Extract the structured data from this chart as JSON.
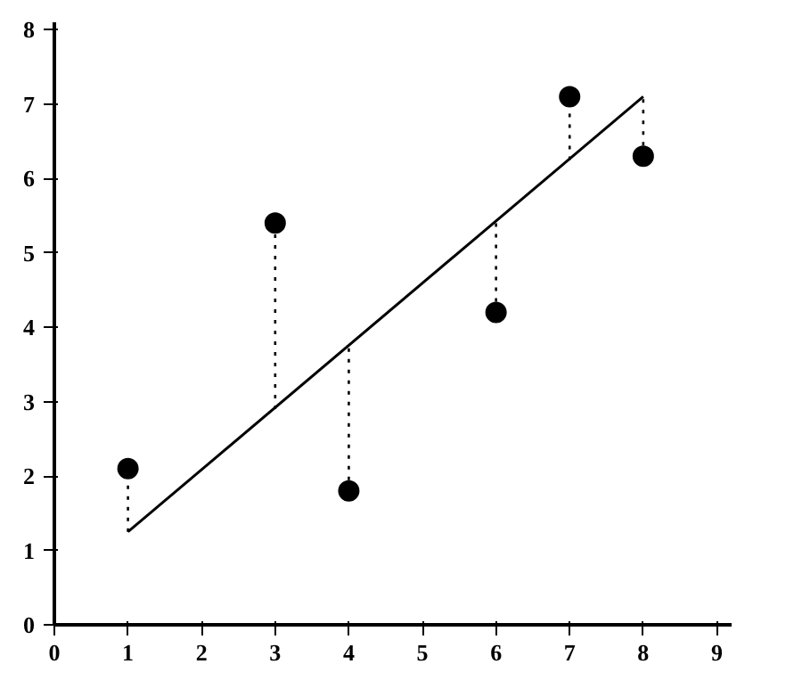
{
  "chart_data": {
    "type": "scatter",
    "xlim": [
      0,
      9.2
    ],
    "ylim": [
      0,
      8.1
    ],
    "xticks": [
      0,
      1,
      2,
      3,
      4,
      5,
      6,
      7,
      8,
      9
    ],
    "yticks": [
      0,
      1,
      2,
      3,
      4,
      5,
      6,
      7,
      8
    ],
    "grid": false,
    "series": [
      {
        "color": "#000000",
        "marker": "circle",
        "x": [
          1,
          3,
          4,
          6,
          7,
          8
        ],
        "values": [
          2.1,
          5.4,
          1.8,
          4.2,
          7.1,
          6.3
        ],
        "errors": [
          [
            1.25,
            2.1
          ],
          [
            2.9,
            5.4
          ],
          [
            1.8,
            3.75
          ],
          [
            4.2,
            5.45
          ],
          [
            6.25,
            7.1
          ],
          [
            6.3,
            7.1
          ]
        ]
      },
      {
        "type": "line",
        "color": "#000000",
        "line_style": "solid",
        "marker": "none",
        "x": [
          1,
          8
        ],
        "values": [
          1.25,
          7.1
        ]
      }
    ]
  }
}
